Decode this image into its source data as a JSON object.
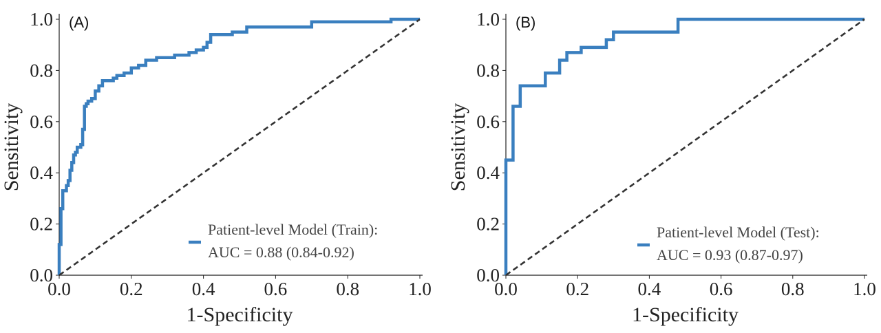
{
  "chart_data": [
    {
      "type": "line",
      "panel_label": "(A)",
      "xlabel": "1-Specificity",
      "ylabel": "Sensitivity",
      "xlim": [
        0,
        1
      ],
      "ylim": [
        0,
        1
      ],
      "x_ticks": [
        "0.0",
        "0.2",
        "0.4",
        "0.6",
        "0.8",
        "1.0"
      ],
      "y_ticks": [
        "0.0",
        "0.2",
        "0.4",
        "0.6",
        "0.8",
        "1.0"
      ],
      "grid": false,
      "legend": {
        "position": "bottom-right",
        "line1": "Patient-level Model (Train):",
        "line2": "AUC = 0.88 (0.84-0.92)"
      },
      "series": [
        {
          "name": "Patient-level Model (Train)",
          "color": "#3a7fbf",
          "x": [
            0,
            0,
            0.005,
            0.005,
            0.01,
            0.01,
            0.02,
            0.02,
            0.025,
            0.025,
            0.03,
            0.03,
            0.035,
            0.035,
            0.04,
            0.04,
            0.045,
            0.045,
            0.05,
            0.05,
            0.06,
            0.06,
            0.065,
            0.065,
            0.07,
            0.07,
            0.075,
            0.075,
            0.08,
            0.08,
            0.09,
            0.09,
            0.1,
            0.1,
            0.11,
            0.11,
            0.12,
            0.12,
            0.15,
            0.15,
            0.16,
            0.16,
            0.18,
            0.18,
            0.2,
            0.2,
            0.22,
            0.22,
            0.24,
            0.24,
            0.27,
            0.27,
            0.32,
            0.32,
            0.36,
            0.36,
            0.38,
            0.38,
            0.4,
            0.4,
            0.41,
            0.41,
            0.42,
            0.42,
            0.48,
            0.48,
            0.52,
            0.52,
            0.7,
            0.7,
            0.92,
            0.92,
            1.0
          ],
          "y": [
            0,
            0.12,
            0.12,
            0.26,
            0.26,
            0.33,
            0.33,
            0.35,
            0.35,
            0.37,
            0.37,
            0.41,
            0.41,
            0.44,
            0.44,
            0.47,
            0.47,
            0.48,
            0.48,
            0.5,
            0.5,
            0.51,
            0.51,
            0.57,
            0.57,
            0.66,
            0.66,
            0.67,
            0.67,
            0.68,
            0.68,
            0.69,
            0.69,
            0.72,
            0.72,
            0.74,
            0.74,
            0.76,
            0.76,
            0.77,
            0.77,
            0.78,
            0.78,
            0.79,
            0.79,
            0.81,
            0.81,
            0.82,
            0.82,
            0.84,
            0.84,
            0.85,
            0.85,
            0.86,
            0.86,
            0.87,
            0.87,
            0.88,
            0.88,
            0.89,
            0.89,
            0.91,
            0.91,
            0.94,
            0.94,
            0.95,
            0.95,
            0.97,
            0.97,
            0.99,
            0.99,
            1.0,
            1.0
          ]
        },
        {
          "name": "",
          "style": "dashed",
          "color": "#333333",
          "x": [
            0,
            1
          ],
          "y": [
            0,
            1
          ]
        }
      ]
    },
    {
      "type": "line",
      "panel_label": "(B)",
      "xlabel": "1-Specificity",
      "ylabel": "Sensitivity",
      "xlim": [
        0,
        1
      ],
      "ylim": [
        0,
        1
      ],
      "x_ticks": [
        "0.0",
        "0.2",
        "0.4",
        "0.6",
        "0.8",
        "1.0"
      ],
      "y_ticks": [
        "0.0",
        "0.2",
        "0.4",
        "0.6",
        "0.8",
        "1.0"
      ],
      "grid": false,
      "legend": {
        "position": "bottom-right",
        "line1": "Patient-level Model (Test):",
        "line2": "AUC = 0.93 (0.87-0.97)"
      },
      "series": [
        {
          "name": "Patient-level Model (Test)",
          "color": "#3a7fbf",
          "x": [
            0,
            0,
            0.02,
            0.02,
            0.04,
            0.04,
            0.11,
            0.11,
            0.15,
            0.15,
            0.17,
            0.17,
            0.21,
            0.21,
            0.28,
            0.28,
            0.3,
            0.3,
            0.48,
            0.48,
            1.0
          ],
          "y": [
            0,
            0.45,
            0.45,
            0.66,
            0.66,
            0.74,
            0.74,
            0.79,
            0.79,
            0.84,
            0.84,
            0.87,
            0.87,
            0.89,
            0.89,
            0.92,
            0.92,
            0.95,
            0.95,
            1.0,
            1.0
          ]
        },
        {
          "name": "",
          "style": "dashed",
          "color": "#333333",
          "x": [
            0,
            1
          ],
          "y": [
            0,
            1
          ]
        }
      ]
    }
  ]
}
